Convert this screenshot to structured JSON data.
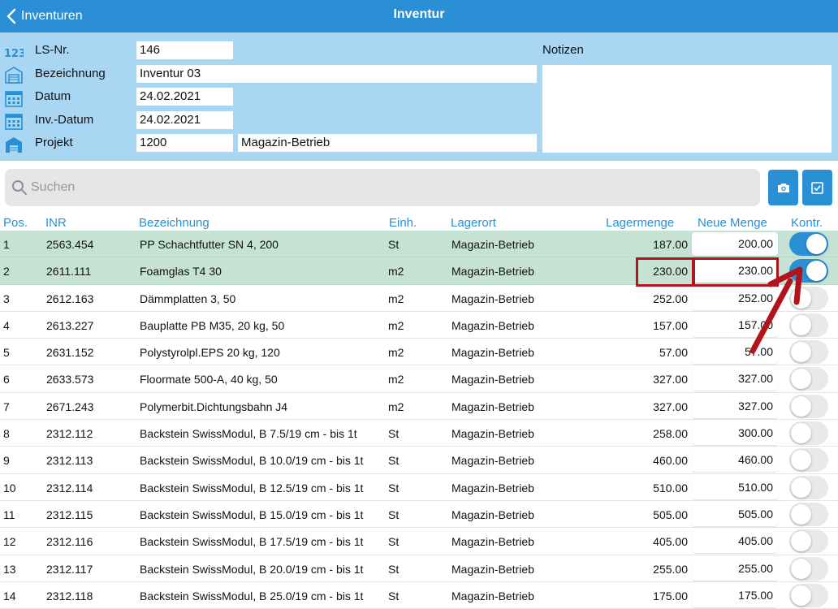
{
  "navbar": {
    "back_label": "Inventuren",
    "title": "Inventur"
  },
  "form": {
    "ls_nr": {
      "label": "LS-Nr.",
      "value": "146"
    },
    "bezeichnung": {
      "label": "Bezeichnung",
      "value": "Inventur 03"
    },
    "datum": {
      "label": "Datum",
      "value": "24.02.2021"
    },
    "inv_datum": {
      "label": "Inv.-Datum",
      "value": "24.02.2021"
    },
    "projekt": {
      "label": "Projekt",
      "value": "1200",
      "name": "Magazin-Betrieb"
    },
    "notizen_label": "Notizen",
    "notizen_value": ""
  },
  "search": {
    "placeholder": "Suchen",
    "value": ""
  },
  "columns": {
    "pos": "Pos.",
    "inr": "INR",
    "bezeichnung": "Bezeichnung",
    "einh": "Einh.",
    "lagerort": "Lagerort",
    "lagermenge": "Lagermenge",
    "neue_menge": "Neue Menge",
    "kontr": "Kontr."
  },
  "colors": {
    "accent": "#2a8fd4",
    "header_bg": "#a8d6f3",
    "checked_row": "#c5e2d4",
    "highlight": "#b0151b"
  },
  "rows": [
    {
      "pos": "1",
      "inr": "2563.454",
      "bez": "PP Schachtfutter SN 4, 200",
      "einh": "St",
      "lagerort": "Magazin-Betrieb",
      "lagermenge": "187.00",
      "neue": "200.00",
      "kontr": true
    },
    {
      "pos": "2",
      "inr": "2611.111",
      "bez": "Foamglas  T4   30",
      "einh": "m2",
      "lagerort": "Magazin-Betrieb",
      "lagermenge": "230.00",
      "neue": "230.00",
      "kontr": true
    },
    {
      "pos": "3",
      "inr": "2612.163",
      "bez": "Dämmplatten 3, 50",
      "einh": "m2",
      "lagerort": "Magazin-Betrieb",
      "lagermenge": "252.00",
      "neue": "252.00",
      "kontr": false
    },
    {
      "pos": "4",
      "inr": "2613.227",
      "bez": "Bauplatte PB M35, 20 kg,  50",
      "einh": "m2",
      "lagerort": "Magazin-Betrieb",
      "lagermenge": "157.00",
      "neue": "157.00",
      "kontr": false
    },
    {
      "pos": "5",
      "inr": "2631.152",
      "bez": "Polystyrolpl.EPS 20 kg, 120",
      "einh": "m2",
      "lagerort": "Magazin-Betrieb",
      "lagermenge": "57.00",
      "neue": "57.00",
      "kontr": false
    },
    {
      "pos": "6",
      "inr": "2633.573",
      "bez": "Floormate 500-A, 40 kg,  50",
      "einh": "m2",
      "lagerort": "Magazin-Betrieb",
      "lagermenge": "327.00",
      "neue": "327.00",
      "kontr": false
    },
    {
      "pos": "7",
      "inr": "2671.243",
      "bez": "Polymerbit.Dichtungsbahn J4",
      "einh": "m2",
      "lagerort": "Magazin-Betrieb",
      "lagermenge": "327.00",
      "neue": "327.00",
      "kontr": false
    },
    {
      "pos": "8",
      "inr": "2312.112",
      "bez": "Backstein SwissModul, B   7.5/19 cm - bis 1t",
      "einh": "St",
      "lagerort": "Magazin-Betrieb",
      "lagermenge": "258.00",
      "neue": "300.00",
      "kontr": false
    },
    {
      "pos": "9",
      "inr": "2312.113",
      "bez": "Backstein SwissModul, B 10.0/19 cm - bis 1t",
      "einh": "St",
      "lagerort": "Magazin-Betrieb",
      "lagermenge": "460.00",
      "neue": "460.00",
      "kontr": false
    },
    {
      "pos": "10",
      "inr": "2312.114",
      "bez": "Backstein SwissModul, B 12.5/19 cm - bis 1t",
      "einh": "St",
      "lagerort": "Magazin-Betrieb",
      "lagermenge": "510.00",
      "neue": "510.00",
      "kontr": false
    },
    {
      "pos": "11",
      "inr": "2312.115",
      "bez": "Backstein SwissModul, B 15.0/19 cm - bis 1t",
      "einh": "St",
      "lagerort": "Magazin-Betrieb",
      "lagermenge": "505.00",
      "neue": "505.00",
      "kontr": false
    },
    {
      "pos": "12",
      "inr": "2312.116",
      "bez": "Backstein SwissModul, B 17.5/19 cm - bis 1t",
      "einh": "St",
      "lagerort": "Magazin-Betrieb",
      "lagermenge": "405.00",
      "neue": "405.00",
      "kontr": false
    },
    {
      "pos": "13",
      "inr": "2312.117",
      "bez": "Backstein SwissModul, B 20.0/19 cm - bis 1t",
      "einh": "St",
      "lagerort": "Magazin-Betrieb",
      "lagermenge": "255.00",
      "neue": "255.00",
      "kontr": false
    },
    {
      "pos": "14",
      "inr": "2312.118",
      "bez": "Backstein SwissModul, B 25.0/19 cm - bis 1t",
      "einh": "St",
      "lagerort": "Magazin-Betrieb",
      "lagermenge": "175.00",
      "neue": "175.00",
      "kontr": false
    }
  ]
}
